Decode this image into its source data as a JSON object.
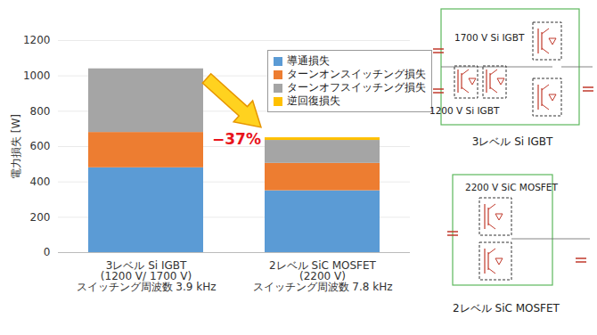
{
  "chart_data": {
    "type": "bar",
    "stacked": true,
    "categories": [
      "3レベル Si IGBT\n(1200 V/ 1700 V)\nスイッチング周波数 3.9 kHz",
      "2レベル SiC MOSFET\n(2200 V)\nスイッチング周波数 7.8 kHz"
    ],
    "series": [
      {
        "name": "導通損失",
        "color": "#5B9BD5",
        "values": [
          480,
          350
        ]
      },
      {
        "name": "ターンオンスイッチング損失",
        "color": "#ED7D31",
        "values": [
          200,
          155
        ]
      },
      {
        "name": "ターンオフスイッチング損失",
        "color": "#A5A5A5",
        "values": [
          360,
          130
        ]
      },
      {
        "name": "逆回復損失",
        "color": "#FFC000",
        "values": [
          0,
          15
        ]
      }
    ],
    "ylabel": "電力損失 [W]",
    "ylim": [
      0,
      1200
    ],
    "yticks": [
      0,
      200,
      400,
      600,
      800,
      1000,
      1200
    ],
    "grid": true,
    "legend": "top-right",
    "annotations": [
      {
        "text": "−37%"
      }
    ]
  },
  "circuits": [
    {
      "title": "3レベル Si IGBT",
      "labels": [
        "1700 V Si IGBT",
        "1200 V Si IGBT"
      ]
    },
    {
      "title": "2レベル SiC MOSFET",
      "labels": [
        "2200 V SiC MOSFET"
      ]
    }
  ]
}
